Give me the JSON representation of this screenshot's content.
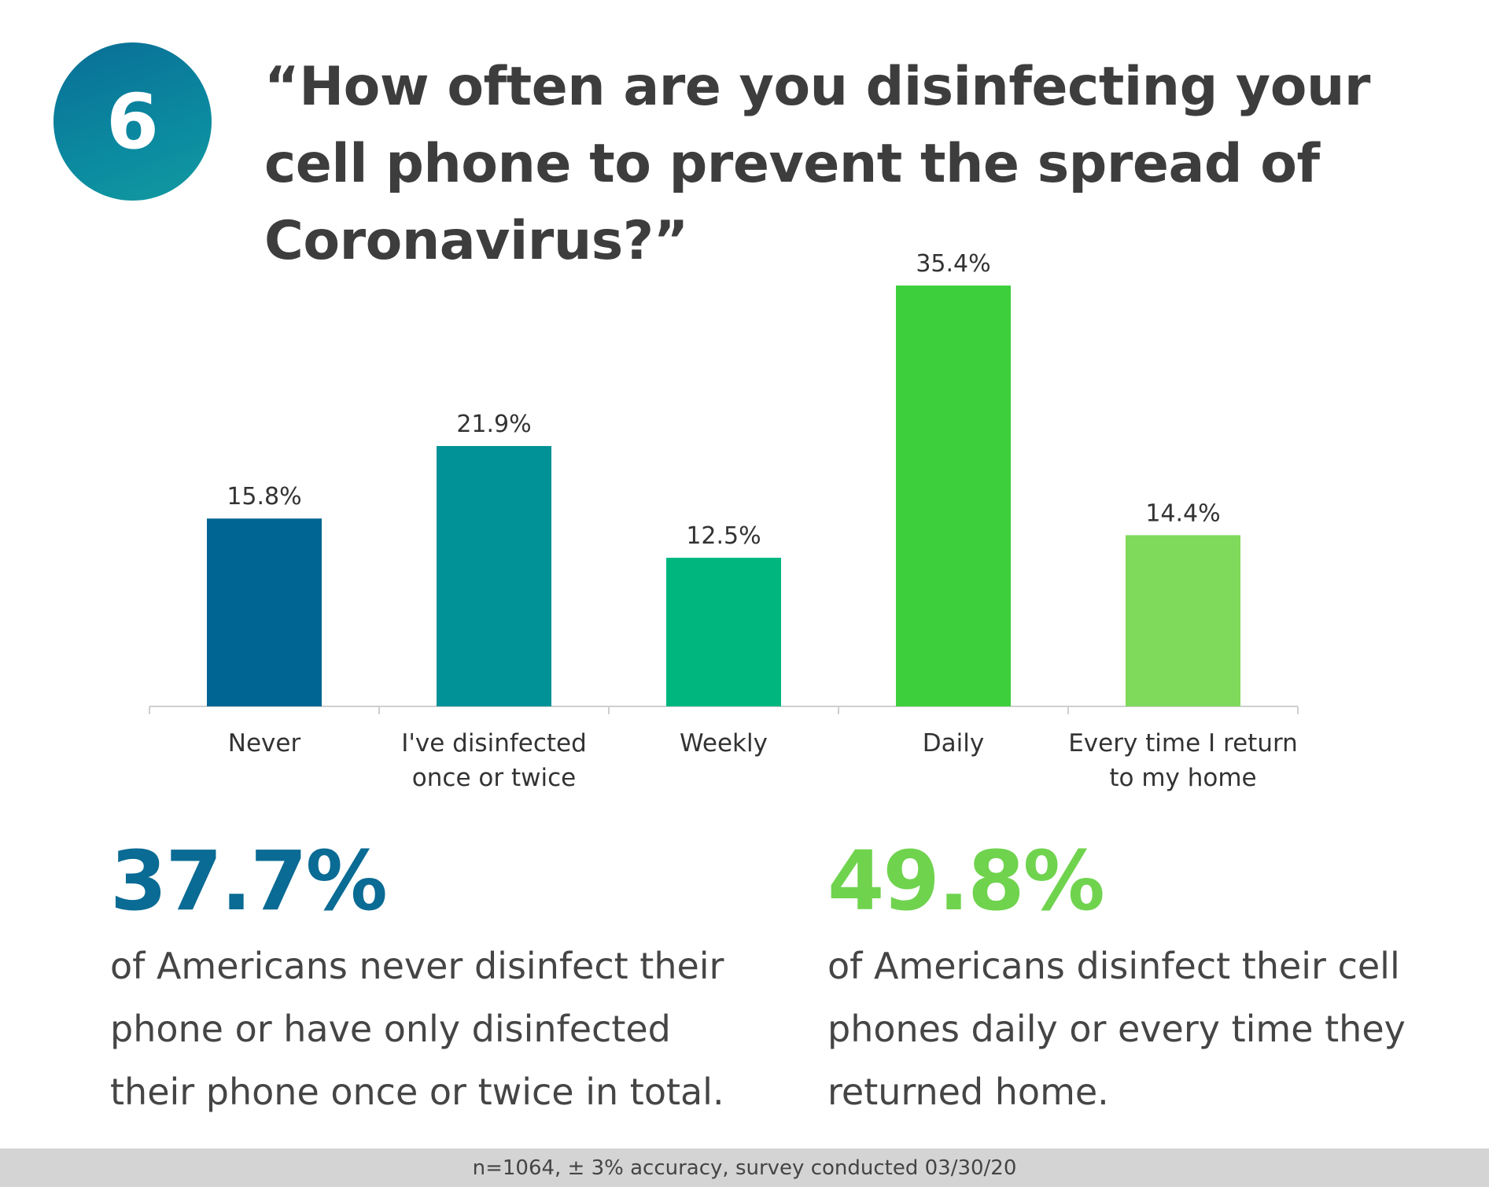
{
  "badge": {
    "number": "6"
  },
  "title": "“How often are you disinfecting your cell phone to prevent the spread of Coronavirus?”",
  "chart_data": {
    "type": "bar",
    "categories": [
      "Never",
      "I've disinfected once or twice",
      "Weekly",
      "Daily",
      "Every time I return to my home"
    ],
    "category_lines": [
      [
        "Never"
      ],
      [
        "I've disinfected",
        "once or twice"
      ],
      [
        "Weekly"
      ],
      [
        "Daily"
      ],
      [
        "Every time I return",
        "to my home"
      ]
    ],
    "values": [
      15.8,
      21.9,
      12.5,
      35.4,
      14.4
    ],
    "value_labels": [
      "15.8%",
      "21.9%",
      "12.5%",
      "35.4%",
      "14.4%"
    ],
    "bar_colors": [
      "#006593",
      "#009297",
      "#00b67f",
      "#3ecf3c",
      "#7fd95a"
    ],
    "ylim": [
      0,
      35.4
    ],
    "title": "",
    "xlabel": "",
    "ylabel": "",
    "grid": false,
    "legend": "none"
  },
  "stats": {
    "left": {
      "value": "37.7%",
      "text": "of Americans never disinfect their phone or have only disinfected their phone once or twice in total."
    },
    "right": {
      "value": "49.8%",
      "text": "of Americans disinfect their cell phones daily or every time they returned home."
    }
  },
  "footer": "n=1064, ± 3% accuracy, survey conducted 03/30/20",
  "colors": {
    "stat_left": "#0a6b94",
    "stat_right": "#6fd34e",
    "badge": "#0b7fa0"
  }
}
